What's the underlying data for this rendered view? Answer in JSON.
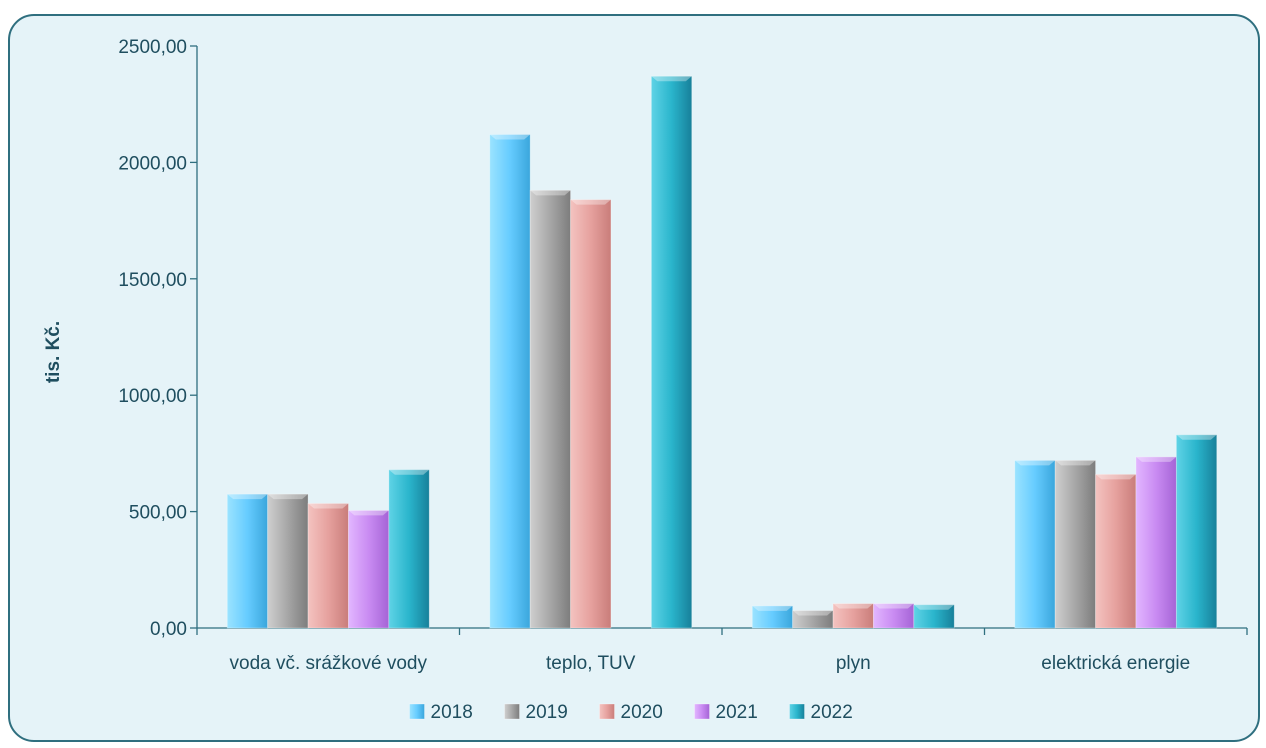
{
  "chart_data": {
    "type": "bar",
    "title": "",
    "xlabel": "",
    "ylabel": "tis. Kč.",
    "ylim": [
      0,
      2500
    ],
    "yticks": [
      "0,00",
      "500,00",
      "1000,00",
      "1500,00",
      "2000,00",
      "2500,00"
    ],
    "grid": false,
    "legend_position": "bottom",
    "categories": [
      "voda vč. srážkové vody",
      "teplo, TUV",
      "plyn",
      "elektrická energie"
    ],
    "series": [
      {
        "name": "2018",
        "color": "#66ccff",
        "values": [
          575,
          2120,
          95,
          720
        ]
      },
      {
        "name": "2019",
        "color": "#a6a6a6",
        "values": [
          575,
          1880,
          75,
          720
        ]
      },
      {
        "name": "2020",
        "color": "#e6a19e",
        "values": [
          535,
          1840,
          105,
          660
        ]
      },
      {
        "name": "2021",
        "color": "#c98bf2",
        "values": [
          505,
          0,
          105,
          735
        ]
      },
      {
        "name": "2022",
        "color": "#2ab5cc",
        "values": [
          680,
          2370,
          100,
          830
        ]
      }
    ]
  }
}
